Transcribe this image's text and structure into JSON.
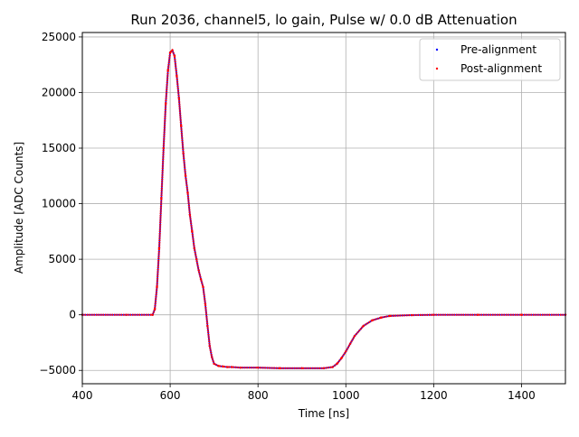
{
  "chart_data": {
    "type": "scatter",
    "title": "Run 2036, channel5, lo gain, Pulse w/ 0.0 dB Attenuation",
    "xlabel": "Time [ns]",
    "ylabel": "Amplitude [ADC Counts]",
    "xlim": [
      400,
      1500
    ],
    "ylim": [
      -6200,
      25400
    ],
    "xticks": [
      400,
      600,
      800,
      1000,
      1200,
      1400
    ],
    "yticks": [
      -5000,
      0,
      5000,
      10000,
      15000,
      20000,
      25000
    ],
    "xtick_labels": [
      "400",
      "600",
      "800",
      "1000",
      "1200",
      "1400"
    ],
    "ytick_labels": [
      "−5000",
      "0",
      "5000",
      "10000",
      "15000",
      "20000",
      "25000"
    ],
    "grid": true,
    "legend_position": "top-right",
    "series": [
      {
        "name": "Pre-alignment",
        "color": "#0000ff",
        "x": [
          400,
          500,
          560,
          565,
          570,
          575,
          580,
          585,
          590,
          595,
          600,
          605,
          610,
          615,
          620,
          625,
          630,
          635,
          640,
          645,
          650,
          655,
          660,
          665,
          670,
          675,
          680,
          685,
          690,
          695,
          700,
          710,
          720,
          730,
          740,
          760,
          800,
          850,
          900,
          950,
          970,
          980,
          990,
          1000,
          1010,
          1020,
          1040,
          1060,
          1080,
          1100,
          1150,
          1200,
          1300,
          1400,
          1500
        ],
        "y": [
          0,
          0,
          0,
          500,
          2500,
          6000,
          10500,
          15000,
          19000,
          22000,
          23600,
          23800,
          23300,
          21500,
          19500,
          17000,
          14500,
          12500,
          11000,
          9000,
          7500,
          6000,
          5000,
          4000,
          3200,
          2500,
          1000,
          -1000,
          -2800,
          -3800,
          -4400,
          -4600,
          -4650,
          -4700,
          -4700,
          -4750,
          -4750,
          -4800,
          -4800,
          -4800,
          -4700,
          -4400,
          -3900,
          -3300,
          -2600,
          -1900,
          -1000,
          -500,
          -250,
          -100,
          -30,
          0,
          0,
          0,
          0
        ]
      },
      {
        "name": "Post-alignment",
        "color": "#ff0000",
        "x": [
          400,
          500,
          560,
          565,
          570,
          575,
          580,
          585,
          590,
          595,
          600,
          605,
          610,
          615,
          620,
          625,
          630,
          635,
          640,
          645,
          650,
          655,
          660,
          665,
          670,
          675,
          680,
          685,
          690,
          695,
          700,
          710,
          720,
          730,
          740,
          760,
          800,
          850,
          900,
          950,
          970,
          980,
          990,
          1000,
          1010,
          1020,
          1040,
          1060,
          1080,
          1100,
          1150,
          1200,
          1300,
          1400,
          1500
        ],
        "y": [
          0,
          0,
          0,
          500,
          2500,
          6000,
          10500,
          15000,
          19000,
          22000,
          23600,
          23800,
          23300,
          21500,
          19500,
          17000,
          14500,
          12500,
          11000,
          9000,
          7500,
          6000,
          5000,
          4000,
          3200,
          2500,
          1000,
          -1000,
          -2800,
          -3800,
          -4400,
          -4600,
          -4650,
          -4700,
          -4700,
          -4750,
          -4750,
          -4800,
          -4800,
          -4800,
          -4700,
          -4400,
          -3900,
          -3300,
          -2600,
          -1900,
          -1000,
          -500,
          -250,
          -100,
          -30,
          0,
          0,
          0,
          0
        ]
      }
    ]
  }
}
